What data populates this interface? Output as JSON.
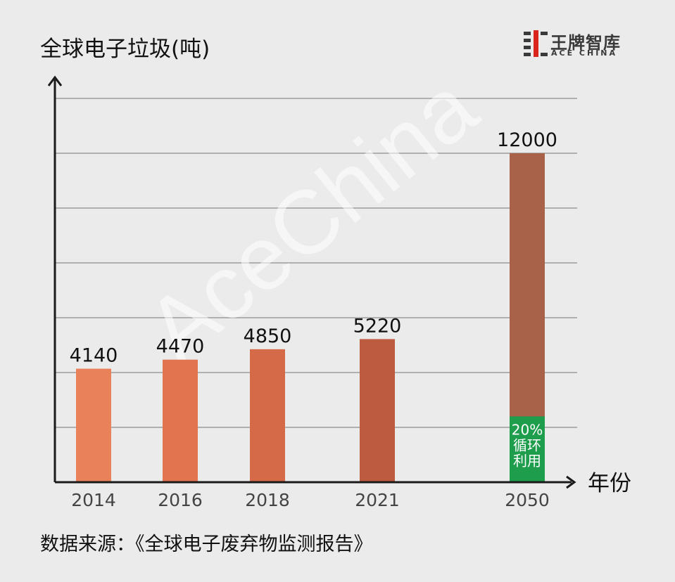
{
  "chart_data": {
    "type": "bar",
    "ylabel": "全球电子垃圾(吨)",
    "xlabel": "年份",
    "categories": [
      "2014",
      "2016",
      "2018",
      "2021",
      "2050"
    ],
    "values": [
      4140,
      4470,
      4850,
      5220,
      12000
    ],
    "value_labels": [
      "4140",
      "4470",
      "4850",
      "5220",
      "12000"
    ],
    "ylim": [
      0,
      12000
    ],
    "grid": true,
    "highlight": {
      "category": "2050",
      "segment_value": 2400,
      "label_lines": [
        "20%",
        "循环",
        "利用"
      ],
      "color": "#1e9d4d"
    },
    "bar_colors": [
      "#e9815a",
      "#e27550",
      "#d46a48",
      "#bd5b40",
      "#a9624a"
    ]
  },
  "source": "数据来源：《全球电子废弃物监测报告》",
  "watermark": "AceChina",
  "logo": {
    "name_cn": "王牌智库",
    "name_en": "ACE CHINA",
    "accent": "#d9251c"
  }
}
